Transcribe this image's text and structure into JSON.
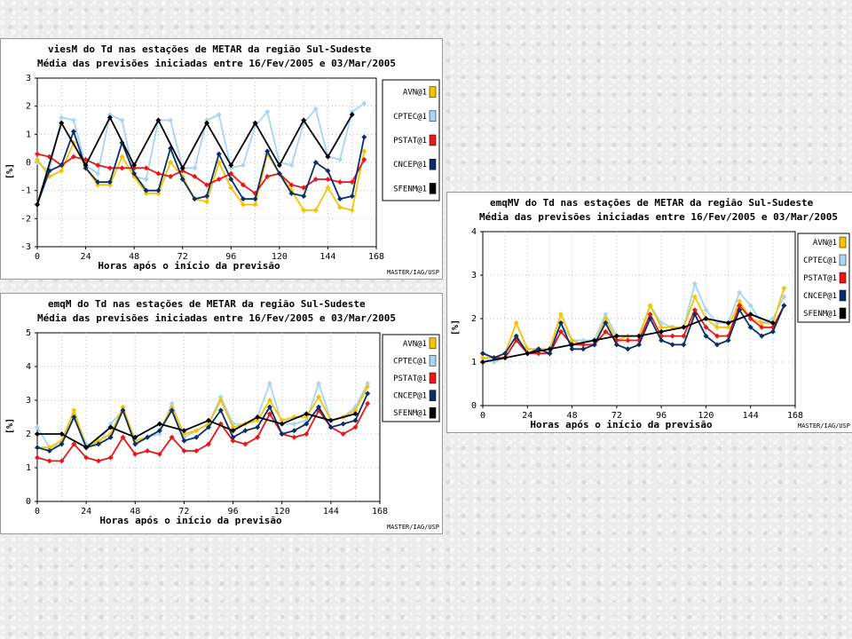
{
  "colors": {
    "AVN": "#f5c400",
    "CPTEC": "#a8d4f5",
    "PSTAT": "#e81818",
    "CNCEP": "#0a2e66",
    "SFENM": "#000000"
  },
  "chart_data": [
    {
      "id": "viesM",
      "type": "line",
      "title": "viesM do Td nas estações de METAR da região Sul-Sudeste",
      "subtitle": "Média das previsões iniciadas entre 16/Fev/2005 e 03/Mar/2005",
      "xlabel": "Horas após o início da previsão",
      "ylabel": "[%]",
      "credit": "MASTER/IAG/USP",
      "xlim": [
        0,
        168
      ],
      "ylim": [
        -3,
        3
      ],
      "xticks": [
        "0",
        "24",
        "48",
        "72",
        "96",
        "120",
        "144",
        "168"
      ],
      "yticks": [
        "-3",
        "-2",
        "-1",
        "0",
        "1",
        "2",
        "3"
      ],
      "grid": true,
      "legend_position": "right",
      "x": [
        0,
        6,
        12,
        18,
        24,
        30,
        36,
        42,
        48,
        54,
        60,
        66,
        72,
        78,
        84,
        90,
        96,
        102,
        108,
        114,
        120,
        126,
        132,
        138,
        144,
        150,
        156,
        162
      ],
      "series": [
        {
          "name": "AVN@1",
          "key": "AVN",
          "values": [
            0.1,
            -0.5,
            -0.3,
            0.7,
            -0.2,
            -0.8,
            -0.8,
            0.2,
            -0.5,
            -1.1,
            -1.1,
            0.0,
            -0.5,
            -1.3,
            -1.4,
            0.0,
            -0.9,
            -1.5,
            -1.5,
            0.3,
            -0.4,
            -1.0,
            -1.7,
            -1.7,
            -0.9,
            -1.6,
            -1.7,
            0.4
          ]
        },
        {
          "name": "CPTEC@1",
          "key": "CPTEC",
          "values": [
            0.0,
            -0.3,
            1.6,
            1.5,
            -0.1,
            -0.4,
            1.7,
            1.5,
            -0.5,
            -0.6,
            1.5,
            1.5,
            -0.2,
            -0.2,
            1.5,
            1.7,
            -0.2,
            -0.1,
            1.3,
            1.8,
            0.0,
            -0.1,
            1.4,
            1.9,
            0.2,
            0.1,
            1.8,
            2.1
          ]
        },
        {
          "name": "PSTAT@1",
          "key": "PSTAT",
          "values": [
            0.3,
            0.2,
            -0.1,
            0.2,
            0.1,
            -0.1,
            -0.2,
            -0.2,
            -0.2,
            -0.2,
            -0.4,
            -0.5,
            -0.3,
            -0.5,
            -0.8,
            -0.6,
            -0.4,
            -0.8,
            -1.1,
            -0.5,
            -0.4,
            -0.8,
            -0.9,
            -0.6,
            -0.6,
            -0.7,
            -0.7,
            0.1
          ]
        },
        {
          "name": "CNCEP@1",
          "key": "CNCEP",
          "values": [
            -1.5,
            -0.3,
            -0.1,
            1.1,
            -0.2,
            -0.7,
            -0.7,
            0.7,
            -0.4,
            -1.0,
            -1.0,
            0.5,
            -0.6,
            -1.3,
            -1.2,
            0.3,
            -0.6,
            -1.3,
            -1.3,
            0.4,
            -0.4,
            -1.1,
            -1.2,
            0.0,
            -0.3,
            -1.3,
            -1.2,
            0.9
          ]
        },
        {
          "name": "SFENM@1",
          "key": "SFENM",
          "values": [
            -1.5,
            null,
            1.4,
            null,
            -0.1,
            null,
            1.6,
            null,
            -0.1,
            null,
            1.5,
            null,
            -0.2,
            null,
            1.4,
            null,
            -0.1,
            null,
            1.4,
            null,
            -0.1,
            null,
            1.5,
            null,
            0.2,
            null,
            1.7,
            null
          ]
        }
      ]
    },
    {
      "id": "emqMV",
      "type": "line",
      "title": "emqMV do Td nas estações de METAR da região Sul-Sudeste",
      "subtitle": "Média das previsões iniciadas entre 16/Fev/2005 e 03/Mar/2005",
      "xlabel": "Horas após o início da previsão",
      "ylabel": "[%]",
      "credit": "MASTER/IAG/USP",
      "xlim": [
        0,
        168
      ],
      "ylim": [
        0,
        4
      ],
      "xticks": [
        "0",
        "24",
        "48",
        "72",
        "96",
        "120",
        "144",
        "168"
      ],
      "yticks": [
        "0",
        "1",
        "2",
        "3",
        "4"
      ],
      "grid": true,
      "legend_position": "right",
      "x": [
        0,
        6,
        12,
        18,
        24,
        30,
        36,
        42,
        48,
        54,
        60,
        66,
        72,
        78,
        84,
        90,
        96,
        102,
        108,
        114,
        120,
        126,
        132,
        138,
        144,
        150,
        156,
        162
      ],
      "series": [
        {
          "name": "AVN@1",
          "key": "AVN",
          "values": [
            1.1,
            1.1,
            1.2,
            1.9,
            1.3,
            1.3,
            1.3,
            2.1,
            1.5,
            1.4,
            1.4,
            2.0,
            1.5,
            1.6,
            1.6,
            2.3,
            1.8,
            1.8,
            1.8,
            2.5,
            2.0,
            1.8,
            1.8,
            2.4,
            2.0,
            1.9,
            1.9,
            2.7
          ]
        },
        {
          "name": "CPTEC@1",
          "key": "CPTEC",
          "values": [
            1.1,
            1.0,
            1.1,
            1.5,
            1.3,
            1.3,
            1.3,
            1.9,
            1.5,
            1.5,
            1.5,
            2.1,
            1.6,
            1.6,
            1.6,
            2.3,
            1.9,
            1.8,
            1.8,
            2.8,
            2.2,
            1.9,
            1.9,
            2.6,
            2.3,
            1.9,
            2.0,
            2.5
          ]
        },
        {
          "name": "PSTAT@1",
          "key": "PSTAT",
          "values": [
            1.2,
            1.1,
            1.1,
            1.5,
            1.2,
            1.2,
            1.2,
            1.7,
            1.4,
            1.4,
            1.4,
            1.7,
            1.5,
            1.5,
            1.5,
            2.1,
            1.6,
            1.6,
            1.6,
            2.2,
            1.8,
            1.6,
            1.6,
            2.3,
            2.0,
            1.8,
            1.8,
            2.3
          ]
        },
        {
          "name": "CNCEP@1",
          "key": "CNCEP",
          "values": [
            1.2,
            1.1,
            1.2,
            1.6,
            1.2,
            1.3,
            1.2,
            1.9,
            1.3,
            1.3,
            1.4,
            1.9,
            1.4,
            1.3,
            1.4,
            2.0,
            1.5,
            1.4,
            1.4,
            2.1,
            1.6,
            1.4,
            1.5,
            2.2,
            1.8,
            1.6,
            1.7,
            2.3
          ]
        },
        {
          "name": "SFENM@1",
          "key": "SFENM",
          "values": [
            1.0,
            null,
            1.1,
            null,
            1.2,
            null,
            1.3,
            null,
            1.4,
            null,
            1.5,
            null,
            1.6,
            null,
            1.6,
            null,
            1.7,
            null,
            1.8,
            null,
            2.0,
            null,
            1.9,
            null,
            2.1,
            null,
            1.9,
            null
          ]
        }
      ]
    },
    {
      "id": "emqM",
      "type": "line",
      "title": "emqM do Td nas estações de METAR da região Sul-Sudeste",
      "subtitle": "Média das previsões iniciadas entre 16/Fev/2005 e 03/Mar/2005",
      "xlabel": "Horas após o início da previsão",
      "ylabel": "[%]",
      "credit": "MASTER/IAG/USP",
      "xlim": [
        0,
        168
      ],
      "ylim": [
        0,
        5
      ],
      "xticks": [
        "0",
        "24",
        "48",
        "72",
        "96",
        "120",
        "144",
        "168"
      ],
      "yticks": [
        "0",
        "1",
        "2",
        "3",
        "4",
        "5"
      ],
      "grid": true,
      "legend_position": "right",
      "x": [
        0,
        6,
        12,
        18,
        24,
        30,
        36,
        42,
        48,
        54,
        60,
        66,
        72,
        78,
        84,
        90,
        96,
        102,
        108,
        114,
        120,
        126,
        132,
        138,
        144,
        150,
        156,
        162
      ],
      "series": [
        {
          "name": "AVN@1",
          "key": "AVN",
          "values": [
            1.6,
            1.6,
            1.8,
            2.7,
            1.6,
            1.8,
            2.0,
            2.8,
            1.8,
            1.9,
            2.1,
            2.8,
            2.0,
            2.1,
            2.3,
            3.0,
            2.2,
            2.3,
            2.4,
            3.0,
            2.4,
            2.5,
            2.5,
            3.1,
            2.4,
            2.5,
            2.7,
            3.4
          ]
        },
        {
          "name": "CPTEC@1",
          "key": "CPTEC",
          "values": [
            2.2,
            1.6,
            1.7,
            2.6,
            1.7,
            1.7,
            2.3,
            2.7,
            1.8,
            1.9,
            2.0,
            2.9,
            1.9,
            2.1,
            2.3,
            3.1,
            2.3,
            2.3,
            2.5,
            3.5,
            2.3,
            2.3,
            2.4,
            3.5,
            2.4,
            2.5,
            2.8,
            3.5
          ]
        },
        {
          "name": "PSTAT@1",
          "key": "PSTAT",
          "values": [
            1.3,
            1.2,
            1.2,
            1.7,
            1.3,
            1.2,
            1.3,
            1.9,
            1.4,
            1.5,
            1.4,
            1.9,
            1.5,
            1.5,
            1.7,
            2.3,
            1.8,
            1.7,
            1.9,
            2.6,
            2.0,
            1.9,
            2.0,
            2.7,
            2.2,
            2.0,
            2.2,
            2.9
          ]
        },
        {
          "name": "CNCEP@1",
          "key": "CNCEP",
          "values": [
            1.6,
            1.5,
            1.7,
            2.5,
            1.6,
            1.7,
            1.9,
            2.7,
            1.7,
            1.9,
            2.1,
            2.7,
            1.8,
            1.9,
            2.2,
            2.7,
            1.9,
            2.1,
            2.2,
            2.8,
            2.0,
            2.1,
            2.3,
            2.8,
            2.2,
            2.3,
            2.4,
            3.2
          ]
        },
        {
          "name": "SFENM@1",
          "key": "SFENM",
          "values": [
            2.0,
            null,
            2.0,
            null,
            1.6,
            null,
            2.2,
            null,
            1.9,
            null,
            2.3,
            null,
            2.1,
            null,
            2.4,
            null,
            2.1,
            null,
            2.5,
            null,
            2.3,
            null,
            2.6,
            null,
            2.4,
            null,
            2.6,
            null
          ]
        }
      ]
    }
  ]
}
